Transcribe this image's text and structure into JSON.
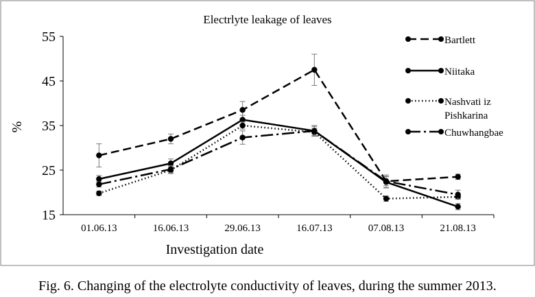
{
  "chart_data": {
    "type": "line",
    "title": "Electrlyte leakage of leaves",
    "xlabel": "Investigation date",
    "ylabel": "%",
    "categories": [
      "01.06.13",
      "16.06.13",
      "29.06.13",
      "16.07.13",
      "07.08.13",
      "21.08.13"
    ],
    "ylim": [
      15,
      55
    ],
    "yticks": [
      15,
      25,
      35,
      45,
      55
    ],
    "grid": false,
    "legend_position": "right",
    "series": [
      {
        "name": "Bartlett",
        "style": "dashed",
        "values": [
          28.3,
          32.0,
          38.5,
          47.5,
          22.5,
          23.5
        ],
        "errors": [
          2.6,
          1.1,
          1.9,
          3.5,
          1.0,
          0.6
        ]
      },
      {
        "name": "Niitaka",
        "style": "solid",
        "values": [
          23.0,
          26.5,
          36.3,
          33.8,
          22.3,
          16.8
        ],
        "errors": [
          0.8,
          1.0,
          1.0,
          1.2,
          1.3,
          0.7
        ]
      },
      {
        "name": "Nashvati iz Pishkarina",
        "style": "dotted",
        "values": [
          19.8,
          25.0,
          35.0,
          33.5,
          18.6,
          19.0
        ],
        "errors": [
          0.5,
          0.8,
          0.8,
          0.9,
          0.6,
          0.5
        ]
      },
      {
        "name": "Chuwhangbae",
        "style": "dashdot",
        "values": [
          21.8,
          25.2,
          32.3,
          33.8,
          22.5,
          19.5
        ],
        "errors": [
          0.6,
          0.8,
          1.5,
          1.0,
          1.4,
          1.0
        ]
      }
    ]
  },
  "caption": "Fig. 6. Changing of the electrolyte conductivity of leaves, during the summer 2013."
}
